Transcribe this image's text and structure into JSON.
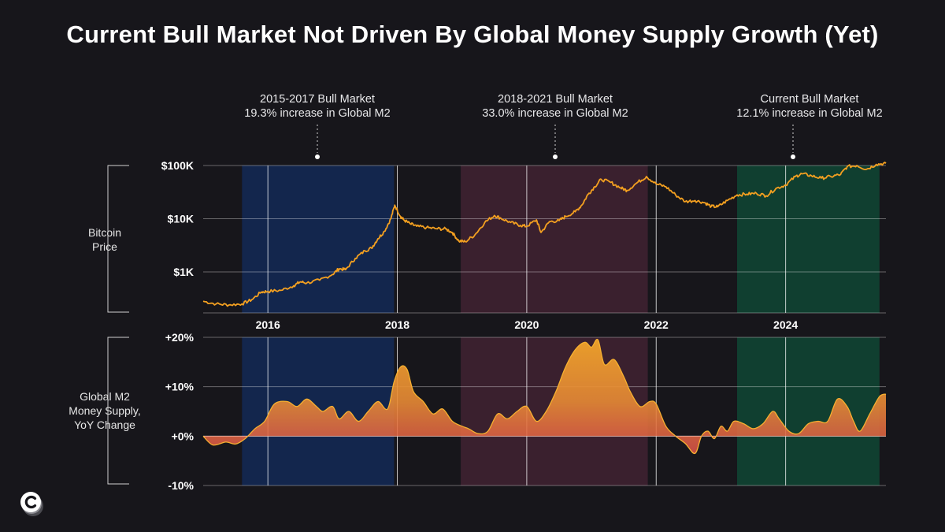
{
  "title": "Current Bull Market Not Driven By Global Money Supply Growth (Yet)",
  "annotations": [
    {
      "line1": "2015-2017 Bull Market",
      "line2": "19.3% increase in Global M2"
    },
    {
      "line1": "2018-2021 Bull Market",
      "line2": "33.0% increase in Global M2"
    },
    {
      "line1": "Current Bull Market",
      "line2": "12.1% increase in Global M2"
    }
  ],
  "side_labels": {
    "top": [
      "Bitcoin",
      "Price"
    ],
    "bottom": [
      "Global M2",
      "Money Supply,",
      "YoY Change"
    ]
  },
  "colors": {
    "background": "#17161b",
    "bull_1": "#13264d",
    "bull_2": "#3a202e",
    "bull_3": "#103f30",
    "price_line": "#f4a020",
    "m2_fill_top": "#f2a42a",
    "m2_fill_bottom": "#e0524a"
  },
  "chart_data": [
    {
      "type": "line",
      "title": "",
      "ylabel": "Bitcoin Price",
      "scale": "log",
      "ylim": [
        150,
        120000
      ],
      "y_ticks": [
        {
          "value": 1000,
          "label": "$1K"
        },
        {
          "value": 10000,
          "label": "$10K"
        },
        {
          "value": 100000,
          "label": "$100K"
        }
      ],
      "x_ticks": [
        {
          "value": 2016,
          "label": "2016"
        },
        {
          "value": 2018,
          "label": "2018"
        },
        {
          "value": 2020,
          "label": "2020"
        },
        {
          "value": 2022,
          "label": "2022"
        },
        {
          "value": 2024,
          "label": "2024"
        }
      ],
      "xlim": [
        2015.0,
        2025.55
      ],
      "shaded_periods": [
        {
          "start": 2015.6,
          "end": 2017.95,
          "color": "#13264d"
        },
        {
          "start": 2018.98,
          "end": 2021.87,
          "color": "#3a202e"
        },
        {
          "start": 2023.25,
          "end": 2025.45,
          "color": "#103f30"
        }
      ],
      "series": [
        {
          "x": [
            2015.0,
            2015.2,
            2015.4,
            2015.6,
            2015.75,
            2015.9,
            2016.0,
            2016.2,
            2016.4,
            2016.5,
            2016.6,
            2016.8,
            2017.0,
            2017.1,
            2017.2,
            2017.35,
            2017.5,
            2017.6,
            2017.7,
            2017.8,
            2017.9,
            2017.96,
            2018.05,
            2018.1,
            2018.2,
            2018.3,
            2018.45,
            2018.6,
            2018.75,
            2018.85,
            2018.95,
            2019.05,
            2019.2,
            2019.35,
            2019.5,
            2019.6,
            2019.75,
            2019.9,
            2020.0,
            2020.15,
            2020.22,
            2020.35,
            2020.5,
            2020.6,
            2020.75,
            2020.85,
            2020.95,
            2021.05,
            2021.15,
            2021.3,
            2021.45,
            2021.55,
            2021.7,
            2021.85,
            2022.0,
            2022.15,
            2022.3,
            2022.45,
            2022.6,
            2022.75,
            2022.85,
            2022.95,
            2023.1,
            2023.25,
            2023.4,
            2023.55,
            2023.7,
            2023.85,
            2024.0,
            2024.15,
            2024.25,
            2024.4,
            2024.55,
            2024.7,
            2024.85,
            2024.95,
            2025.1,
            2025.25,
            2025.4,
            2025.55
          ],
          "y": [
            280,
            250,
            240,
            250,
            300,
            420,
            430,
            450,
            550,
            650,
            620,
            700,
            900,
            1150,
            1100,
            1800,
            2500,
            2800,
            4200,
            5800,
            10000,
            18000,
            11000,
            9500,
            8000,
            7200,
            6800,
            6500,
            6400,
            5500,
            3800,
            3700,
            5000,
            8500,
            11500,
            10200,
            8500,
            7500,
            7200,
            9500,
            5500,
            8800,
            9200,
            11000,
            13500,
            18000,
            29000,
            40000,
            55000,
            48000,
            38000,
            34000,
            47000,
            62000,
            45000,
            40000,
            28000,
            21000,
            22000,
            20000,
            17000,
            16800,
            22000,
            28000,
            29000,
            30000,
            27000,
            37000,
            43000,
            62000,
            70000,
            64000,
            58000,
            62000,
            68000,
            95000,
            100000,
            85000,
            105000,
            110000
          ]
        }
      ]
    },
    {
      "type": "area",
      "title": "",
      "ylabel": "Global M2 Money Supply, YoY Change",
      "ylim": [
        -10,
        20
      ],
      "y_ticks": [
        {
          "value": 20,
          "label": "+20%"
        },
        {
          "value": 10,
          "label": "+10%"
        },
        {
          "value": 0,
          "label": "+0%"
        },
        {
          "value": -10,
          "label": "-10%"
        }
      ],
      "xlim": [
        2015.0,
        2025.55
      ],
      "series": [
        {
          "x": [
            2015.0,
            2015.15,
            2015.35,
            2015.5,
            2015.65,
            2015.8,
            2015.95,
            2016.1,
            2016.3,
            2016.45,
            2016.6,
            2016.75,
            2016.85,
            2017.0,
            2017.1,
            2017.25,
            2017.4,
            2017.55,
            2017.7,
            2017.85,
            2017.95,
            2018.05,
            2018.15,
            2018.25,
            2018.4,
            2018.55,
            2018.7,
            2018.85,
            2019.0,
            2019.1,
            2019.25,
            2019.4,
            2019.55,
            2019.7,
            2019.85,
            2020.0,
            2020.15,
            2020.3,
            2020.45,
            2020.6,
            2020.75,
            2020.9,
            2021.0,
            2021.1,
            2021.2,
            2021.35,
            2021.5,
            2021.6,
            2021.75,
            2021.9,
            2022.0,
            2022.15,
            2022.3,
            2022.45,
            2022.6,
            2022.7,
            2022.8,
            2022.9,
            2023.0,
            2023.1,
            2023.2,
            2023.35,
            2023.5,
            2023.65,
            2023.8,
            2023.9,
            2024.05,
            2024.2,
            2024.35,
            2024.5,
            2024.65,
            2024.8,
            2024.95,
            2025.05,
            2025.15,
            2025.3,
            2025.45,
            2025.55
          ],
          "y": [
            0,
            -1.8,
            -1.2,
            -1.6,
            -0.5,
            1.5,
            3.0,
            6.5,
            7.0,
            6.0,
            7.5,
            6.0,
            5.0,
            6.0,
            3.5,
            5.0,
            3.0,
            5.0,
            7.0,
            5.5,
            11,
            14,
            13.5,
            9.0,
            7.0,
            4.5,
            5.5,
            3.0,
            2.0,
            1.5,
            0.5,
            1.0,
            4.5,
            3.5,
            5.0,
            6.0,
            3.0,
            5.0,
            9.0,
            14.0,
            17.5,
            19.0,
            18.0,
            19.5,
            14.5,
            15.5,
            12.0,
            9.0,
            6.0,
            7.0,
            6.5,
            2.0,
            0,
            -1.5,
            -3.5,
            0,
            1.0,
            -0.5,
            2.0,
            1.0,
            3.0,
            2.5,
            1.5,
            2.5,
            5.0,
            3.5,
            1.0,
            0.5,
            2.5,
            3.0,
            3.0,
            7.5,
            6.0,
            3.0,
            1.0,
            4.5,
            8.0,
            8.5
          ]
        }
      ]
    }
  ]
}
